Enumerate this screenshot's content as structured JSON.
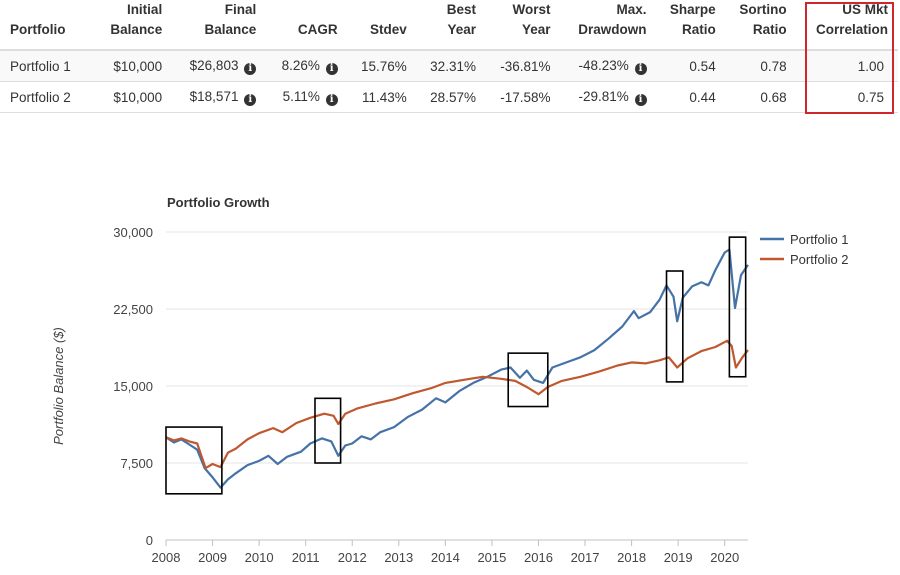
{
  "table": {
    "headers": [
      "Portfolio",
      "Initial\nBalance",
      "Final\nBalance",
      "CAGR",
      "Stdev",
      "Best\nYear",
      "Worst\nYear",
      "Max.\nDrawdown",
      "Sharpe\nRatio",
      "Sortino\nRatio",
      "US Mkt\nCorrelation"
    ],
    "rows": [
      [
        "Portfolio 1",
        "$10,000",
        "$26,803",
        "8.26%",
        "15.76%",
        "32.31%",
        "-36.81%",
        "-48.23%",
        "0.54",
        "0.78",
        "1.00"
      ],
      [
        "Portfolio 2",
        "$10,000",
        "$18,571",
        "5.11%",
        "11.43%",
        "28.57%",
        "-17.58%",
        "-29.81%",
        "0.44",
        "0.68",
        "0.75"
      ]
    ],
    "info_icon": "info-circle-icon"
  },
  "chart_data": {
    "type": "line",
    "title": "Portfolio Growth",
    "xlabel": "",
    "ylabel": "Portfolio Balance ($)",
    "ylim": [
      0,
      30000
    ],
    "xlim": [
      2008,
      2020.5
    ],
    "y_ticks": [
      0,
      7500,
      15000,
      22500,
      30000
    ],
    "y_tick_labels": [
      "0",
      "7,500",
      "15,000",
      "22,500",
      "30,000"
    ],
    "x_ticks": [
      2008,
      2009,
      2010,
      2011,
      2012,
      2013,
      2014,
      2015,
      2016,
      2017,
      2018,
      2019,
      2020
    ],
    "x_tick_labels": [
      "2008",
      "2009",
      "2010",
      "2011",
      "2012",
      "2013",
      "2014",
      "2015",
      "2016",
      "2017",
      "2018",
      "2019",
      "2020"
    ],
    "grid": true,
    "legend_position": "right",
    "series": [
      {
        "name": "Portfolio 1",
        "color": "#4572a7",
        "points": [
          [
            2008.0,
            10000
          ],
          [
            2008.17,
            9500
          ],
          [
            2008.33,
            9800
          ],
          [
            2008.5,
            9300
          ],
          [
            2008.67,
            8800
          ],
          [
            2008.83,
            7000
          ],
          [
            2009.0,
            6100
          ],
          [
            2009.17,
            5100
          ],
          [
            2009.33,
            5900
          ],
          [
            2009.5,
            6500
          ],
          [
            2009.75,
            7300
          ],
          [
            2010.0,
            7700
          ],
          [
            2010.2,
            8200
          ],
          [
            2010.4,
            7400
          ],
          [
            2010.6,
            8100
          ],
          [
            2010.9,
            8600
          ],
          [
            2011.1,
            9400
          ],
          [
            2011.35,
            9900
          ],
          [
            2011.55,
            9600
          ],
          [
            2011.7,
            8200
          ],
          [
            2011.85,
            9200
          ],
          [
            2012.0,
            9400
          ],
          [
            2012.2,
            10100
          ],
          [
            2012.4,
            9800
          ],
          [
            2012.6,
            10500
          ],
          [
            2012.9,
            11000
          ],
          [
            2013.2,
            12000
          ],
          [
            2013.5,
            12700
          ],
          [
            2013.8,
            13800
          ],
          [
            2014.0,
            13400
          ],
          [
            2014.3,
            14500
          ],
          [
            2014.6,
            15300
          ],
          [
            2014.9,
            15900
          ],
          [
            2015.2,
            16600
          ],
          [
            2015.4,
            16800
          ],
          [
            2015.6,
            15800
          ],
          [
            2015.75,
            16500
          ],
          [
            2015.9,
            15600
          ],
          [
            2016.1,
            15300
          ],
          [
            2016.3,
            16800
          ],
          [
            2016.6,
            17300
          ],
          [
            2016.9,
            17800
          ],
          [
            2017.2,
            18500
          ],
          [
            2017.5,
            19600
          ],
          [
            2017.8,
            20800
          ],
          [
            2018.05,
            22300
          ],
          [
            2018.15,
            21600
          ],
          [
            2018.4,
            22200
          ],
          [
            2018.6,
            23400
          ],
          [
            2018.75,
            24800
          ],
          [
            2018.9,
            23700
          ],
          [
            2018.98,
            21300
          ],
          [
            2019.1,
            23600
          ],
          [
            2019.3,
            24700
          ],
          [
            2019.5,
            25100
          ],
          [
            2019.65,
            24800
          ],
          [
            2019.8,
            26300
          ],
          [
            2020.0,
            28000
          ],
          [
            2020.1,
            28300
          ],
          [
            2020.22,
            22600
          ],
          [
            2020.35,
            25800
          ],
          [
            2020.5,
            26800
          ]
        ]
      },
      {
        "name": "Portfolio 2",
        "color": "#c0582f",
        "points": [
          [
            2008.0,
            10000
          ],
          [
            2008.17,
            9700
          ],
          [
            2008.33,
            9900
          ],
          [
            2008.5,
            9600
          ],
          [
            2008.67,
            9400
          ],
          [
            2008.85,
            7000
          ],
          [
            2009.0,
            7400
          ],
          [
            2009.17,
            7100
          ],
          [
            2009.33,
            8500
          ],
          [
            2009.5,
            8900
          ],
          [
            2009.75,
            9800
          ],
          [
            2010.0,
            10400
          ],
          [
            2010.3,
            10900
          ],
          [
            2010.5,
            10500
          ],
          [
            2010.8,
            11400
          ],
          [
            2011.1,
            11900
          ],
          [
            2011.4,
            12300
          ],
          [
            2011.6,
            12100
          ],
          [
            2011.7,
            11300
          ],
          [
            2011.85,
            12300
          ],
          [
            2012.1,
            12800
          ],
          [
            2012.5,
            13300
          ],
          [
            2012.9,
            13700
          ],
          [
            2013.3,
            14300
          ],
          [
            2013.7,
            14800
          ],
          [
            2014.0,
            15300
          ],
          [
            2014.4,
            15600
          ],
          [
            2014.8,
            15900
          ],
          [
            2015.2,
            15700
          ],
          [
            2015.5,
            15500
          ],
          [
            2015.75,
            14900
          ],
          [
            2016.0,
            14200
          ],
          [
            2016.2,
            14900
          ],
          [
            2016.5,
            15500
          ],
          [
            2016.9,
            15900
          ],
          [
            2017.3,
            16400
          ],
          [
            2017.7,
            17000
          ],
          [
            2018.0,
            17300
          ],
          [
            2018.3,
            17200
          ],
          [
            2018.6,
            17500
          ],
          [
            2018.8,
            17800
          ],
          [
            2018.98,
            16800
          ],
          [
            2019.2,
            17700
          ],
          [
            2019.5,
            18400
          ],
          [
            2019.8,
            18800
          ],
          [
            2020.05,
            19400
          ],
          [
            2020.15,
            18900
          ],
          [
            2020.24,
            16800
          ],
          [
            2020.38,
            17800
          ],
          [
            2020.5,
            18500
          ]
        ]
      }
    ],
    "annotation_boxes": [
      {
        "x": [
          2008.0,
          2009.2
        ],
        "y": [
          4500,
          11000
        ]
      },
      {
        "x": [
          2011.2,
          2011.75
        ],
        "y": [
          7500,
          13800
        ]
      },
      {
        "x": [
          2015.35,
          2016.2
        ],
        "y": [
          13000,
          18200
        ]
      },
      {
        "x": [
          2018.75,
          2019.1
        ],
        "y": [
          15400,
          26200
        ]
      },
      {
        "x": [
          2020.1,
          2020.45
        ],
        "y": [
          15900,
          29500
        ]
      }
    ]
  }
}
